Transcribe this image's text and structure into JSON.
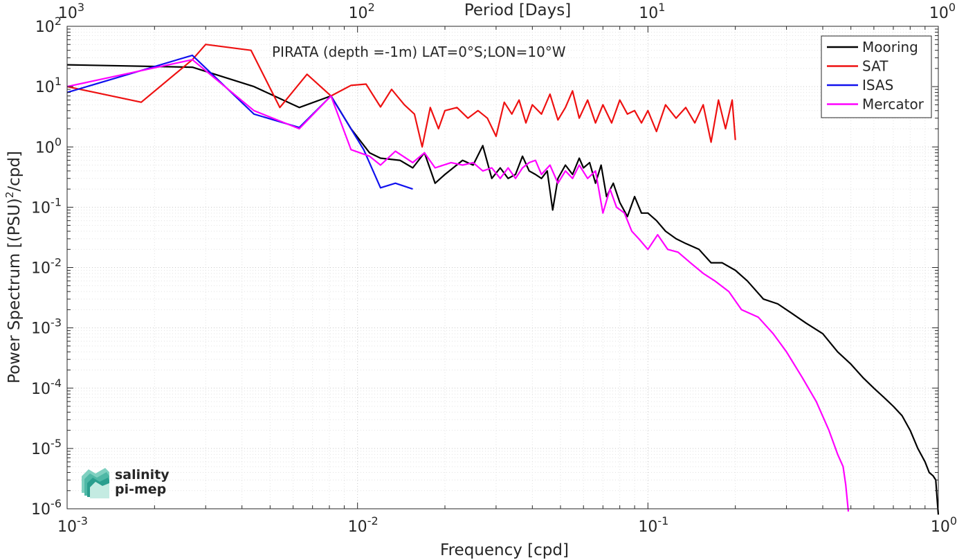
{
  "chart_data": {
    "type": "line",
    "title": "PIRATA (depth =-1m) LAT=0°S;LON=10°W",
    "xlabel": "Frequency [cpd]",
    "ylabel": "Power Spectrum [(PSU)²/cpd]",
    "ylabel_main": "Power Spectrum [(PSU)",
    "ylabel_sup": "2",
    "ylabel_tail": "/cpd]",
    "top_xlabel": "Period [Days]",
    "xscale": "log",
    "yscale": "log",
    "xlim": [
      0.001,
      1
    ],
    "ylim": [
      1e-06,
      100
    ],
    "grid": true,
    "legend_position": "top-right",
    "x_ticks": [
      {
        "value": 0.001,
        "base": "10",
        "exp": "-3"
      },
      {
        "value": 0.01,
        "base": "10",
        "exp": "-2"
      },
      {
        "value": 0.1,
        "base": "10",
        "exp": "-1"
      },
      {
        "value": 1,
        "base": "10",
        "exp": "0"
      }
    ],
    "y_ticks": [
      {
        "value": 100,
        "base": "10",
        "exp": "2"
      },
      {
        "value": 10,
        "base": "10",
        "exp": "1"
      },
      {
        "value": 1,
        "base": "10",
        "exp": "0"
      },
      {
        "value": 0.1,
        "base": "10",
        "exp": "-1"
      },
      {
        "value": 0.01,
        "base": "10",
        "exp": "-2"
      },
      {
        "value": 0.001,
        "base": "10",
        "exp": "-3"
      },
      {
        "value": 0.0001,
        "base": "10",
        "exp": "-4"
      },
      {
        "value": 1e-05,
        "base": "10",
        "exp": "-5"
      },
      {
        "value": 1e-06,
        "base": "10",
        "exp": "-6"
      }
    ],
    "top_ticks": [
      {
        "period": 1000,
        "base": "10",
        "exp": "3"
      },
      {
        "period": 100,
        "base": "10",
        "exp": "2"
      },
      {
        "period": 10,
        "base": "10",
        "exp": "1"
      },
      {
        "period": 1,
        "base": "10",
        "exp": "0"
      }
    ],
    "series": [
      {
        "name": "Mooring",
        "color": "#000000",
        "x": [
          0.001,
          0.0027,
          0.0044,
          0.0063,
          0.0081,
          0.0095,
          0.011,
          0.012,
          0.014,
          0.0155,
          0.017,
          0.0185,
          0.02,
          0.023,
          0.025,
          0.027,
          0.029,
          0.031,
          0.033,
          0.035,
          0.037,
          0.039,
          0.041,
          0.043,
          0.045,
          0.047,
          0.049,
          0.052,
          0.055,
          0.058,
          0.06,
          0.063,
          0.066,
          0.069,
          0.072,
          0.076,
          0.08,
          0.085,
          0.09,
          0.095,
          0.1,
          0.107,
          0.115,
          0.125,
          0.135,
          0.15,
          0.165,
          0.18,
          0.2,
          0.22,
          0.25,
          0.28,
          0.31,
          0.35,
          0.4,
          0.45,
          0.5,
          0.55,
          0.6,
          0.65,
          0.7,
          0.75,
          0.8,
          0.85,
          0.9,
          0.93,
          0.96,
          0.98,
          0.99,
          1.0
        ],
        "y": [
          23,
          21,
          10,
          4.5,
          7,
          2,
          0.8,
          0.65,
          0.6,
          0.45,
          0.8,
          0.25,
          0.35,
          0.6,
          0.5,
          1.05,
          0.3,
          0.45,
          0.3,
          0.35,
          0.7,
          0.4,
          0.35,
          0.3,
          0.4,
          0.09,
          0.3,
          0.5,
          0.35,
          0.65,
          0.45,
          0.55,
          0.25,
          0.5,
          0.15,
          0.25,
          0.12,
          0.07,
          0.15,
          0.08,
          0.08,
          0.06,
          0.04,
          0.03,
          0.025,
          0.02,
          0.012,
          0.012,
          0.009,
          0.006,
          0.003,
          0.0025,
          0.0018,
          0.0012,
          0.0008,
          0.0004,
          0.00025,
          0.00015,
          0.0001,
          7e-05,
          5e-05,
          3.5e-05,
          2e-05,
          1e-05,
          6e-06,
          4e-06,
          3.5e-06,
          3e-06,
          1.5e-06,
          8e-07
        ]
      },
      {
        "name": "SAT",
        "color": "#ee1111",
        "x": [
          0.001,
          0.0018,
          0.0027,
          0.003,
          0.0043,
          0.0054,
          0.0067,
          0.0081,
          0.0095,
          0.0107,
          0.012,
          0.0131,
          0.0145,
          0.0157,
          0.0167,
          0.0178,
          0.019,
          0.02,
          0.022,
          0.024,
          0.026,
          0.028,
          0.03,
          0.032,
          0.034,
          0.036,
          0.038,
          0.04,
          0.043,
          0.046,
          0.049,
          0.052,
          0.055,
          0.058,
          0.062,
          0.066,
          0.07,
          0.075,
          0.08,
          0.085,
          0.09,
          0.095,
          0.1,
          0.107,
          0.115,
          0.125,
          0.135,
          0.145,
          0.155,
          0.165,
          0.175,
          0.185,
          0.195,
          0.2
        ],
        "y": [
          10,
          5.5,
          28,
          50,
          40,
          4.5,
          16,
          7,
          10.5,
          11,
          4.6,
          9,
          5,
          3.5,
          1,
          4.5,
          2,
          4,
          4.5,
          3,
          4,
          3,
          1.5,
          5.5,
          3.5,
          6,
          2.5,
          5,
          3.5,
          7.5,
          2.8,
          4.5,
          8.5,
          3,
          6,
          2.5,
          5,
          2.5,
          6,
          3.5,
          4,
          2.5,
          4,
          1.8,
          5,
          3,
          4.5,
          2.5,
          5,
          1.2,
          6,
          2,
          6,
          1.3
        ]
      },
      {
        "name": "ISAS",
        "color": "#1010ee",
        "x": [
          0.001,
          0.0027,
          0.0044,
          0.0063,
          0.0081,
          0.0105,
          0.012,
          0.0135,
          0.0155
        ],
        "y": [
          8,
          33,
          3.5,
          2.1,
          7,
          0.9,
          0.21,
          0.25,
          0.2
        ]
      },
      {
        "name": "Mercator",
        "color": "#ff00ff",
        "x": [
          0.001,
          0.0027,
          0.0044,
          0.0063,
          0.0081,
          0.0095,
          0.011,
          0.012,
          0.0135,
          0.0155,
          0.017,
          0.0185,
          0.021,
          0.023,
          0.025,
          0.027,
          0.029,
          0.031,
          0.033,
          0.035,
          0.037,
          0.039,
          0.041,
          0.043,
          0.046,
          0.049,
          0.052,
          0.055,
          0.058,
          0.062,
          0.066,
          0.07,
          0.074,
          0.078,
          0.083,
          0.088,
          0.093,
          0.1,
          0.108,
          0.117,
          0.127,
          0.14,
          0.155,
          0.17,
          0.19,
          0.21,
          0.24,
          0.27,
          0.3,
          0.34,
          0.38,
          0.42,
          0.45,
          0.47,
          0.48,
          0.49
        ],
        "y": [
          10,
          28,
          4,
          2,
          7,
          0.9,
          0.7,
          0.5,
          0.85,
          0.55,
          0.8,
          0.45,
          0.55,
          0.5,
          0.55,
          0.4,
          0.45,
          0.3,
          0.45,
          0.3,
          0.45,
          0.55,
          0.6,
          0.35,
          0.5,
          0.25,
          0.4,
          0.3,
          0.5,
          0.3,
          0.4,
          0.08,
          0.2,
          0.1,
          0.08,
          0.04,
          0.03,
          0.02,
          0.035,
          0.02,
          0.018,
          0.012,
          0.008,
          0.006,
          0.004,
          0.002,
          0.0015,
          0.0008,
          0.0004,
          0.00015,
          6e-05,
          2e-05,
          8e-06,
          5e-06,
          2.5e-06,
          9e-07
        ]
      }
    ]
  },
  "logo": {
    "line1": "salinity",
    "line2": "pi-mep"
  }
}
